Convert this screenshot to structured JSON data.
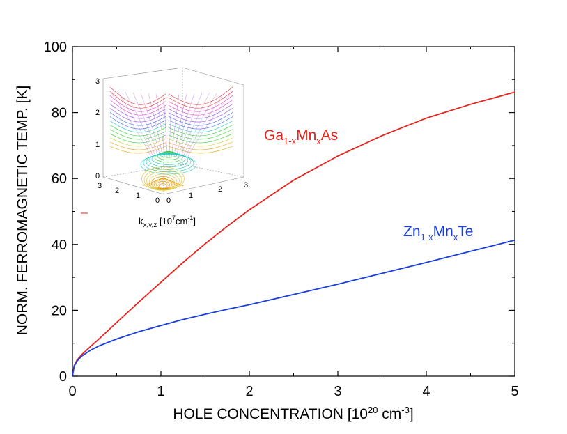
{
  "chart_data": {
    "type": "line",
    "title": "",
    "xlabel": "HOLE CONCENTRATION [10",
    "xlabel_sup": "20",
    "xlabel_unit": "cm",
    "xlabel_unit_sup": "-3",
    "xlabel_end": "]",
    "ylabel": "NORM. FERROMAGNETIC TEMP.  [K]",
    "xlim": [
      0,
      5
    ],
    "ylim": [
      0,
      100
    ],
    "xticks": [
      "0",
      "1",
      "2",
      "3",
      "4",
      "5"
    ],
    "yticks": [
      "0",
      "20",
      "40",
      "60",
      "80",
      "100"
    ],
    "grid": false,
    "series": [
      {
        "label_parts": [
          "Ga",
          "1-x",
          "Mn",
          "x",
          "As"
        ],
        "color": "#e8221b",
        "x": [
          0,
          0.02,
          0.05,
          0.1,
          0.2,
          0.3,
          0.5,
          0.75,
          1,
          1.25,
          1.5,
          1.75,
          2,
          2.5,
          3,
          3.5,
          4,
          4.5,
          5
        ],
        "y": [
          0,
          3.2,
          4.8,
          6.4,
          8.9,
          11.3,
          16.3,
          22.5,
          28.5,
          34.5,
          40.2,
          45.5,
          50.5,
          59.5,
          66.8,
          73.0,
          78.3,
          82.5,
          86.2
        ]
      },
      {
        "label_parts": [
          "Zn",
          "1-x",
          "Mn",
          "x",
          "Te"
        ],
        "color": "#1a3fdd",
        "x": [
          0,
          0.02,
          0.05,
          0.1,
          0.2,
          0.3,
          0.5,
          0.75,
          1,
          1.25,
          1.5,
          1.75,
          2,
          2.5,
          3,
          3.5,
          4,
          4.5,
          5
        ],
        "y": [
          0,
          3.0,
          4.5,
          6.0,
          7.8,
          9.2,
          11.3,
          13.5,
          15.4,
          17.2,
          18.8,
          20.3,
          21.7,
          24.8,
          27.9,
          31.2,
          34.5,
          37.9,
          41.3
        ]
      }
    ]
  },
  "inset": {
    "xlabel": "k",
    "xlabel_sub": "x,y,z",
    "xlabel_rest": " [10",
    "xlabel_sup": "7",
    "xlabel_unit": "cm",
    "xlabel_unit_sup": "-1",
    "xlabel_end": "]",
    "vertical_ticks": [
      "0",
      "1",
      "2",
      "3"
    ],
    "left_axis_ticks": [
      "3",
      "2",
      "1",
      "0"
    ],
    "right_axis_ticks": [
      "0",
      "1",
      "2",
      "3"
    ]
  }
}
